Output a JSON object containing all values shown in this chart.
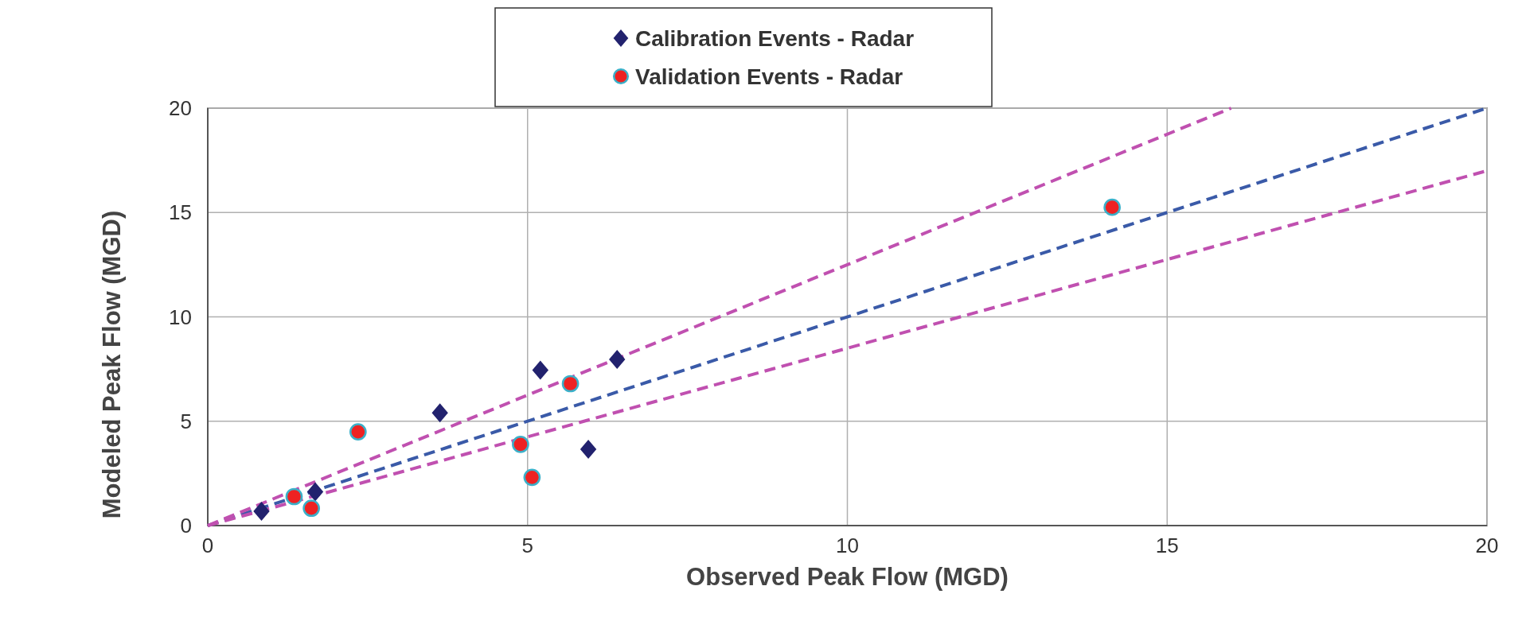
{
  "chart_data": {
    "type": "scatter",
    "xlabel": "Observed  Peak Flow (MGD)",
    "ylabel": "Modeled Peak Flow (MGD)",
    "xlim": [
      0,
      20
    ],
    "ylim": [
      0,
      20
    ],
    "xticks": [
      0,
      5,
      10,
      15,
      20
    ],
    "yticks": [
      0,
      5,
      10,
      15,
      20
    ],
    "grid": true,
    "legend": "top",
    "series": [
      {
        "type": "line",
        "x": [
          0,
          20
        ],
        "values": [
          0,
          20
        ],
        "color": "#3a5aa8",
        "line_style": "dashed"
      },
      {
        "type": "line",
        "x": [
          0,
          16
        ],
        "values": [
          0,
          20
        ],
        "color": "#c050b0",
        "line_style": "dashed"
      },
      {
        "type": "line",
        "x": [
          0,
          20
        ],
        "values": [
          0,
          17
        ],
        "color": "#c050b0",
        "line_style": "dashed"
      },
      {
        "name": "Calibration Events - Radar",
        "marker": "diamond",
        "color": "#22226e",
        "x": [
          0.84,
          1.68,
          3.63,
          5.2,
          6.4,
          5.95
        ],
        "values": [
          0.69,
          1.62,
          5.4,
          7.45,
          7.96,
          3.66
        ]
      },
      {
        "name": "Validation Events - Radar",
        "marker": "circle",
        "color": "#ee2222",
        "x": [
          1.35,
          1.62,
          2.35,
          4.89,
          5.07,
          5.67,
          14.14
        ],
        "values": [
          1.39,
          0.83,
          4.49,
          3.89,
          2.31,
          6.8,
          15.25
        ]
      }
    ]
  }
}
